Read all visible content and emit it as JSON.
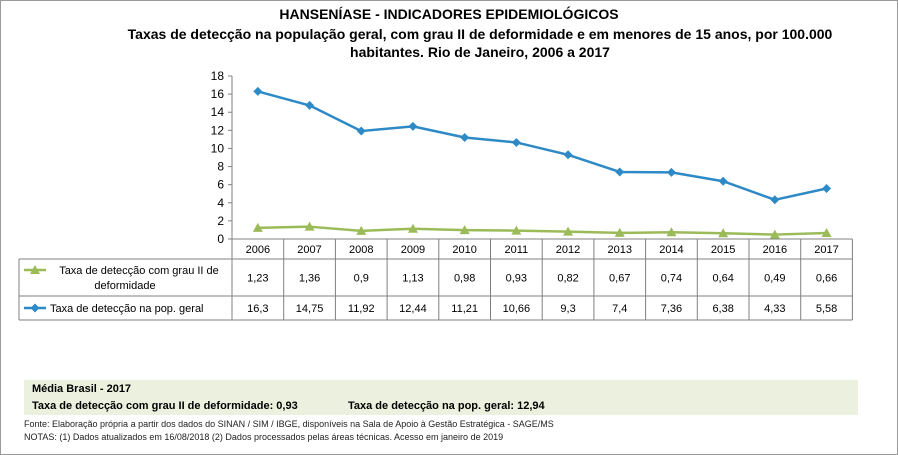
{
  "title": "HANSENÍASE - INDICADORES EPIDEMIOLÓGICOS",
  "subtitle": "Taxas de detecção na população geral, com grau II de deformidade e em menores de 15 anos, por 100.000 habitantes. Rio de Janeiro, 2006 a 2017",
  "colors": {
    "green": "#9bbb59",
    "blue": "#2e8ac6"
  },
  "chart_data": {
    "type": "line",
    "categories": [
      "2006",
      "2007",
      "2008",
      "2009",
      "2010",
      "2011",
      "2012",
      "2013",
      "2014",
      "2015",
      "2016",
      "2017"
    ],
    "ylim": [
      0,
      18
    ],
    "yticks": [
      "0",
      "2",
      "4",
      "6",
      "8",
      "10",
      "12",
      "14",
      "16",
      "18"
    ],
    "series": [
      {
        "name": "Taxa de detecção com grau II de deformidade",
        "values": [
          1.23,
          1.36,
          0.9,
          1.13,
          0.98,
          0.93,
          0.82,
          0.67,
          0.74,
          0.64,
          0.49,
          0.66
        ],
        "labels": [
          "1,23",
          "1,36",
          "0,9",
          "1,13",
          "0,98",
          "0,93",
          "0,82",
          "0,67",
          "0,74",
          "0,64",
          "0,49",
          "0,66"
        ],
        "marker": "triangle",
        "color": "#9bbb59"
      },
      {
        "name": "Taxa de detecção na pop. geral",
        "values": [
          16.3,
          14.75,
          11.92,
          12.44,
          11.21,
          10.66,
          9.3,
          7.4,
          7.36,
          6.38,
          4.33,
          5.58
        ],
        "labels": [
          "16,3",
          "14,75",
          "11,92",
          "12,44",
          "11,21",
          "10,66",
          "9,3",
          "7,4",
          "7,36",
          "6,38",
          "4,33",
          "5,58"
        ],
        "marker": "diamond",
        "color": "#2e8ac6"
      }
    ]
  },
  "summary": {
    "title": "Média Brasil  - 2017",
    "line1": "Taxa  de detecção com grau II de deformidade: 0,93",
    "line2": "Taxa de detecção na pop. geral: 12,94"
  },
  "source": "Fonte:  Elaboração própria a partir dos dados do  SINAN / SIM / IBGE, disponíveis na Sala de Apoio à Gestão Estratégica -  SAGE/MS",
  "notes": "NOTAS: (1) Dados atualizados em 16/08/2018 (2) Dados processados pelas áreas técnicas. Acesso em janeiro de 2019"
}
